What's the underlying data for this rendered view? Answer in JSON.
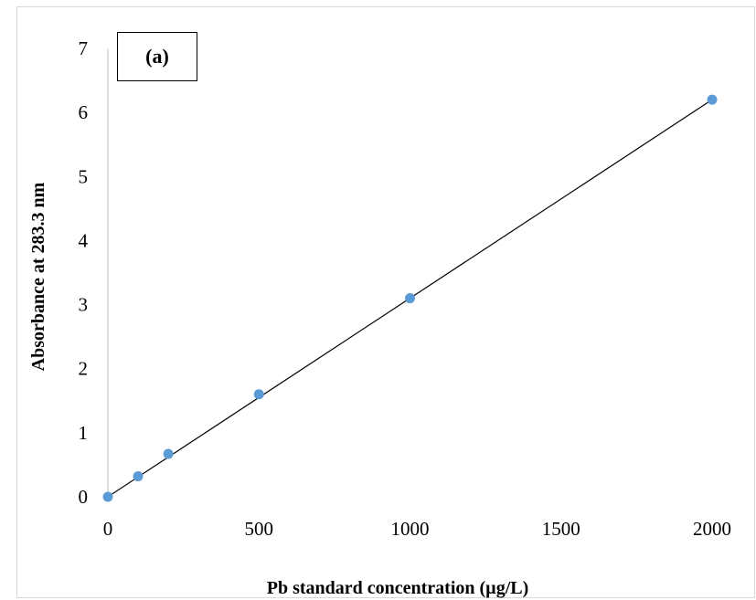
{
  "chart_data": {
    "type": "scatter",
    "panel_label": "(a)",
    "xlabel": "Pb standard concentration (µg/L)",
    "ylabel": "Absorbance at 283.3 nm",
    "xlim": [
      0,
      2000
    ],
    "ylim": [
      0,
      7
    ],
    "x_ticks": [
      0,
      500,
      1000,
      1500,
      2000
    ],
    "y_ticks": [
      0,
      1,
      2,
      3,
      4,
      5,
      6,
      7
    ],
    "grid": false,
    "legend": "none",
    "series": [
      {
        "x": [
          0,
          100,
          200,
          500,
          1000,
          2000
        ],
        "y": [
          0.0,
          0.32,
          0.67,
          1.6,
          3.1,
          6.2
        ],
        "marker_color": "#5b9bd5"
      }
    ],
    "trendline": {
      "type": "linear",
      "x": [
        0,
        2000
      ],
      "y": [
        0.0,
        6.2
      ],
      "color": "#000000"
    }
  }
}
